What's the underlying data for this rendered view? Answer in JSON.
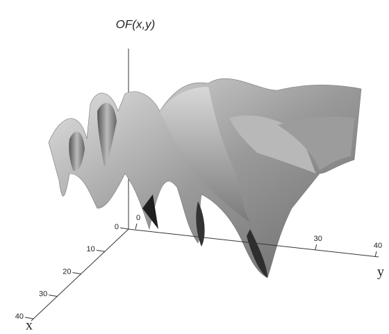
{
  "chart_data": {
    "type": "surface3d",
    "title": "OF(x,y)",
    "x_label": "x",
    "y_label": "y",
    "xlim": [
      0,
      40
    ],
    "xticks": [
      0,
      10,
      20,
      30,
      40
    ],
    "ylim": [
      0,
      40
    ],
    "yticks": [
      0,
      30,
      40
    ]
  }
}
